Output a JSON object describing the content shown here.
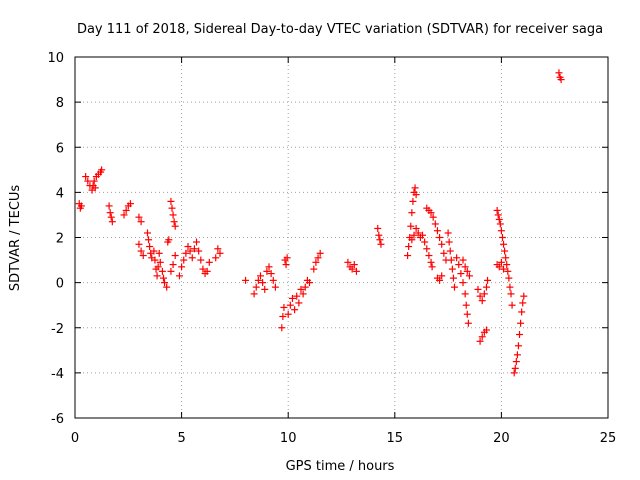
{
  "chart_data": {
    "type": "scatter",
    "title": "Day 111 of 2018, Sidereal Day-to-day VTEC variation (SDTVAR) for receiver saga",
    "xlabel": "GPS time / hours",
    "ylabel": "SDTVAR / TECUs",
    "xlim": [
      0,
      25
    ],
    "ylim": [
      -6,
      10
    ],
    "xticks": [
      0,
      5,
      10,
      15,
      20,
      25
    ],
    "yticks": [
      -6,
      -4,
      -2,
      0,
      2,
      4,
      6,
      8,
      10
    ],
    "grid": true,
    "marker": "+",
    "series_color": "#ff0000",
    "series": [
      {
        "name": "SDTVAR",
        "points": [
          [
            0.2,
            3.5
          ],
          [
            0.25,
            3.3
          ],
          [
            0.3,
            3.4
          ],
          [
            0.5,
            4.7
          ],
          [
            0.6,
            4.5
          ],
          [
            0.7,
            4.3
          ],
          [
            0.8,
            4.1
          ],
          [
            0.85,
            4.3
          ],
          [
            0.9,
            4.5
          ],
          [
            0.95,
            4.2
          ],
          [
            1.0,
            4.7
          ],
          [
            1.1,
            4.8
          ],
          [
            1.2,
            4.9
          ],
          [
            1.25,
            5.0
          ],
          [
            1.6,
            3.4
          ],
          [
            1.65,
            3.1
          ],
          [
            1.7,
            2.9
          ],
          [
            1.75,
            2.7
          ],
          [
            2.3,
            3.0
          ],
          [
            2.4,
            3.2
          ],
          [
            2.5,
            3.4
          ],
          [
            2.6,
            3.5
          ],
          [
            3.0,
            2.9
          ],
          [
            3.1,
            2.7
          ],
          [
            3.0,
            1.7
          ],
          [
            3.1,
            1.4
          ],
          [
            3.2,
            1.2
          ],
          [
            3.4,
            2.2
          ],
          [
            3.45,
            1.9
          ],
          [
            3.5,
            1.6
          ],
          [
            3.55,
            1.3
          ],
          [
            3.6,
            1.1
          ],
          [
            3.7,
            1.4
          ],
          [
            3.75,
            1.0
          ],
          [
            3.8,
            0.6
          ],
          [
            3.85,
            0.3
          ],
          [
            3.9,
            0.7
          ],
          [
            3.95,
            1.3
          ],
          [
            4.0,
            0.9
          ],
          [
            4.1,
            0.5
          ],
          [
            4.15,
            0.2
          ],
          [
            4.2,
            0.0
          ],
          [
            4.3,
            -0.2
          ],
          [
            4.35,
            1.8
          ],
          [
            4.4,
            1.9
          ],
          [
            4.5,
            3.6
          ],
          [
            4.55,
            3.3
          ],
          [
            4.6,
            3.0
          ],
          [
            4.65,
            2.7
          ],
          [
            4.7,
            2.5
          ],
          [
            4.5,
            0.5
          ],
          [
            4.6,
            0.8
          ],
          [
            4.7,
            1.2
          ],
          [
            4.9,
            0.3
          ],
          [
            5.0,
            0.7
          ],
          [
            5.1,
            1.0
          ],
          [
            5.2,
            1.3
          ],
          [
            5.3,
            1.6
          ],
          [
            5.4,
            1.4
          ],
          [
            5.5,
            1.1
          ],
          [
            5.6,
            1.5
          ],
          [
            5.7,
            1.8
          ],
          [
            5.8,
            1.4
          ],
          [
            5.9,
            1.0
          ],
          [
            6.0,
            0.6
          ],
          [
            6.1,
            0.4
          ],
          [
            6.2,
            0.5
          ],
          [
            6.3,
            0.9
          ],
          [
            6.6,
            1.1
          ],
          [
            6.7,
            1.5
          ],
          [
            6.8,
            1.3
          ],
          [
            8.0,
            0.1
          ],
          [
            8.4,
            -0.5
          ],
          [
            8.5,
            -0.2
          ],
          [
            8.6,
            0.1
          ],
          [
            8.7,
            0.3
          ],
          [
            8.8,
            0.0
          ],
          [
            8.9,
            -0.3
          ],
          [
            9.0,
            0.5
          ],
          [
            9.1,
            0.7
          ],
          [
            9.2,
            0.4
          ],
          [
            9.3,
            0.1
          ],
          [
            9.4,
            -0.2
          ],
          [
            9.7,
            -2.0
          ],
          [
            9.75,
            -1.5
          ],
          [
            9.8,
            -1.1
          ],
          [
            9.85,
            1.0
          ],
          [
            9.9,
            0.8
          ],
          [
            9.95,
            1.1
          ],
          [
            10.0,
            -1.4
          ],
          [
            10.1,
            -1.0
          ],
          [
            10.2,
            -0.7
          ],
          [
            10.3,
            -1.2
          ],
          [
            10.4,
            -0.6
          ],
          [
            10.5,
            -0.9
          ],
          [
            10.6,
            -0.3
          ],
          [
            10.7,
            -0.5
          ],
          [
            10.8,
            -0.2
          ],
          [
            10.9,
            0.1
          ],
          [
            11.0,
            0.0
          ],
          [
            11.2,
            0.6
          ],
          [
            11.3,
            0.9
          ],
          [
            11.4,
            1.1
          ],
          [
            11.5,
            1.3
          ],
          [
            12.8,
            0.9
          ],
          [
            12.9,
            0.7
          ],
          [
            13.0,
            0.6
          ],
          [
            13.1,
            0.8
          ],
          [
            13.2,
            0.5
          ],
          [
            14.2,
            2.4
          ],
          [
            14.25,
            2.1
          ],
          [
            14.3,
            1.9
          ],
          [
            14.35,
            1.7
          ],
          [
            15.6,
            1.2
          ],
          [
            15.65,
            1.6
          ],
          [
            15.7,
            2.0
          ],
          [
            15.75,
            2.5
          ],
          [
            15.8,
            3.1
          ],
          [
            15.85,
            3.6
          ],
          [
            15.9,
            4.0
          ],
          [
            15.95,
            4.2
          ],
          [
            16.0,
            3.9
          ],
          [
            15.8,
            1.9
          ],
          [
            15.9,
            2.1
          ],
          [
            16.0,
            2.4
          ],
          [
            16.1,
            2.2
          ],
          [
            16.2,
            2.0
          ],
          [
            16.3,
            2.1
          ],
          [
            16.4,
            1.8
          ],
          [
            16.5,
            1.5
          ],
          [
            16.6,
            1.2
          ],
          [
            16.7,
            0.9
          ],
          [
            16.75,
            0.7
          ],
          [
            16.5,
            3.3
          ],
          [
            16.6,
            3.2
          ],
          [
            16.7,
            3.1
          ],
          [
            16.8,
            2.9
          ],
          [
            16.9,
            2.6
          ],
          [
            17.0,
            2.3
          ],
          [
            17.1,
            2.0
          ],
          [
            17.2,
            1.7
          ],
          [
            17.3,
            1.3
          ],
          [
            17.4,
            1.0
          ],
          [
            17.0,
            0.2
          ],
          [
            17.1,
            0.1
          ],
          [
            17.2,
            0.3
          ],
          [
            17.5,
            2.2
          ],
          [
            17.55,
            1.8
          ],
          [
            17.6,
            1.4
          ],
          [
            17.65,
            1.0
          ],
          [
            17.7,
            0.6
          ],
          [
            17.75,
            0.2
          ],
          [
            17.8,
            -0.2
          ],
          [
            17.9,
            1.1
          ],
          [
            18.0,
            0.8
          ],
          [
            18.1,
            0.4
          ],
          [
            18.2,
            0.0
          ],
          [
            18.3,
            -0.5
          ],
          [
            18.35,
            -1.0
          ],
          [
            18.4,
            -1.4
          ],
          [
            18.45,
            -1.8
          ],
          [
            18.2,
            1.0
          ],
          [
            18.3,
            0.7
          ],
          [
            18.4,
            0.5
          ],
          [
            18.5,
            0.3
          ],
          [
            18.9,
            -0.3
          ],
          [
            19.0,
            -0.6
          ],
          [
            19.1,
            -0.8
          ],
          [
            19.2,
            -0.5
          ],
          [
            19.3,
            -0.2
          ],
          [
            19.35,
            0.1
          ],
          [
            19.0,
            -2.6
          ],
          [
            19.1,
            -2.4
          ],
          [
            19.2,
            -2.2
          ],
          [
            19.3,
            -2.1
          ],
          [
            19.8,
            3.2
          ],
          [
            19.85,
            3.0
          ],
          [
            19.9,
            2.8
          ],
          [
            19.95,
            2.6
          ],
          [
            20.0,
            2.3
          ],
          [
            20.05,
            2.0
          ],
          [
            20.1,
            1.7
          ],
          [
            20.15,
            1.4
          ],
          [
            20.2,
            1.1
          ],
          [
            20.25,
            0.8
          ],
          [
            20.3,
            0.5
          ],
          [
            20.35,
            0.2
          ],
          [
            20.4,
            -0.2
          ],
          [
            20.45,
            -0.5
          ],
          [
            20.5,
            -1.0
          ],
          [
            19.8,
            0.8
          ],
          [
            19.9,
            0.7
          ],
          [
            20.0,
            0.9
          ],
          [
            20.1,
            0.6
          ],
          [
            20.6,
            -4.0
          ],
          [
            20.65,
            -3.8
          ],
          [
            20.7,
            -3.5
          ],
          [
            20.75,
            -3.2
          ],
          [
            20.8,
            -2.8
          ],
          [
            20.85,
            -2.3
          ],
          [
            20.9,
            -1.8
          ],
          [
            20.95,
            -1.3
          ],
          [
            21.0,
            -0.9
          ],
          [
            21.05,
            -0.6
          ],
          [
            22.7,
            9.3
          ],
          [
            22.75,
            9.1
          ],
          [
            22.8,
            9.0
          ]
        ]
      }
    ]
  }
}
